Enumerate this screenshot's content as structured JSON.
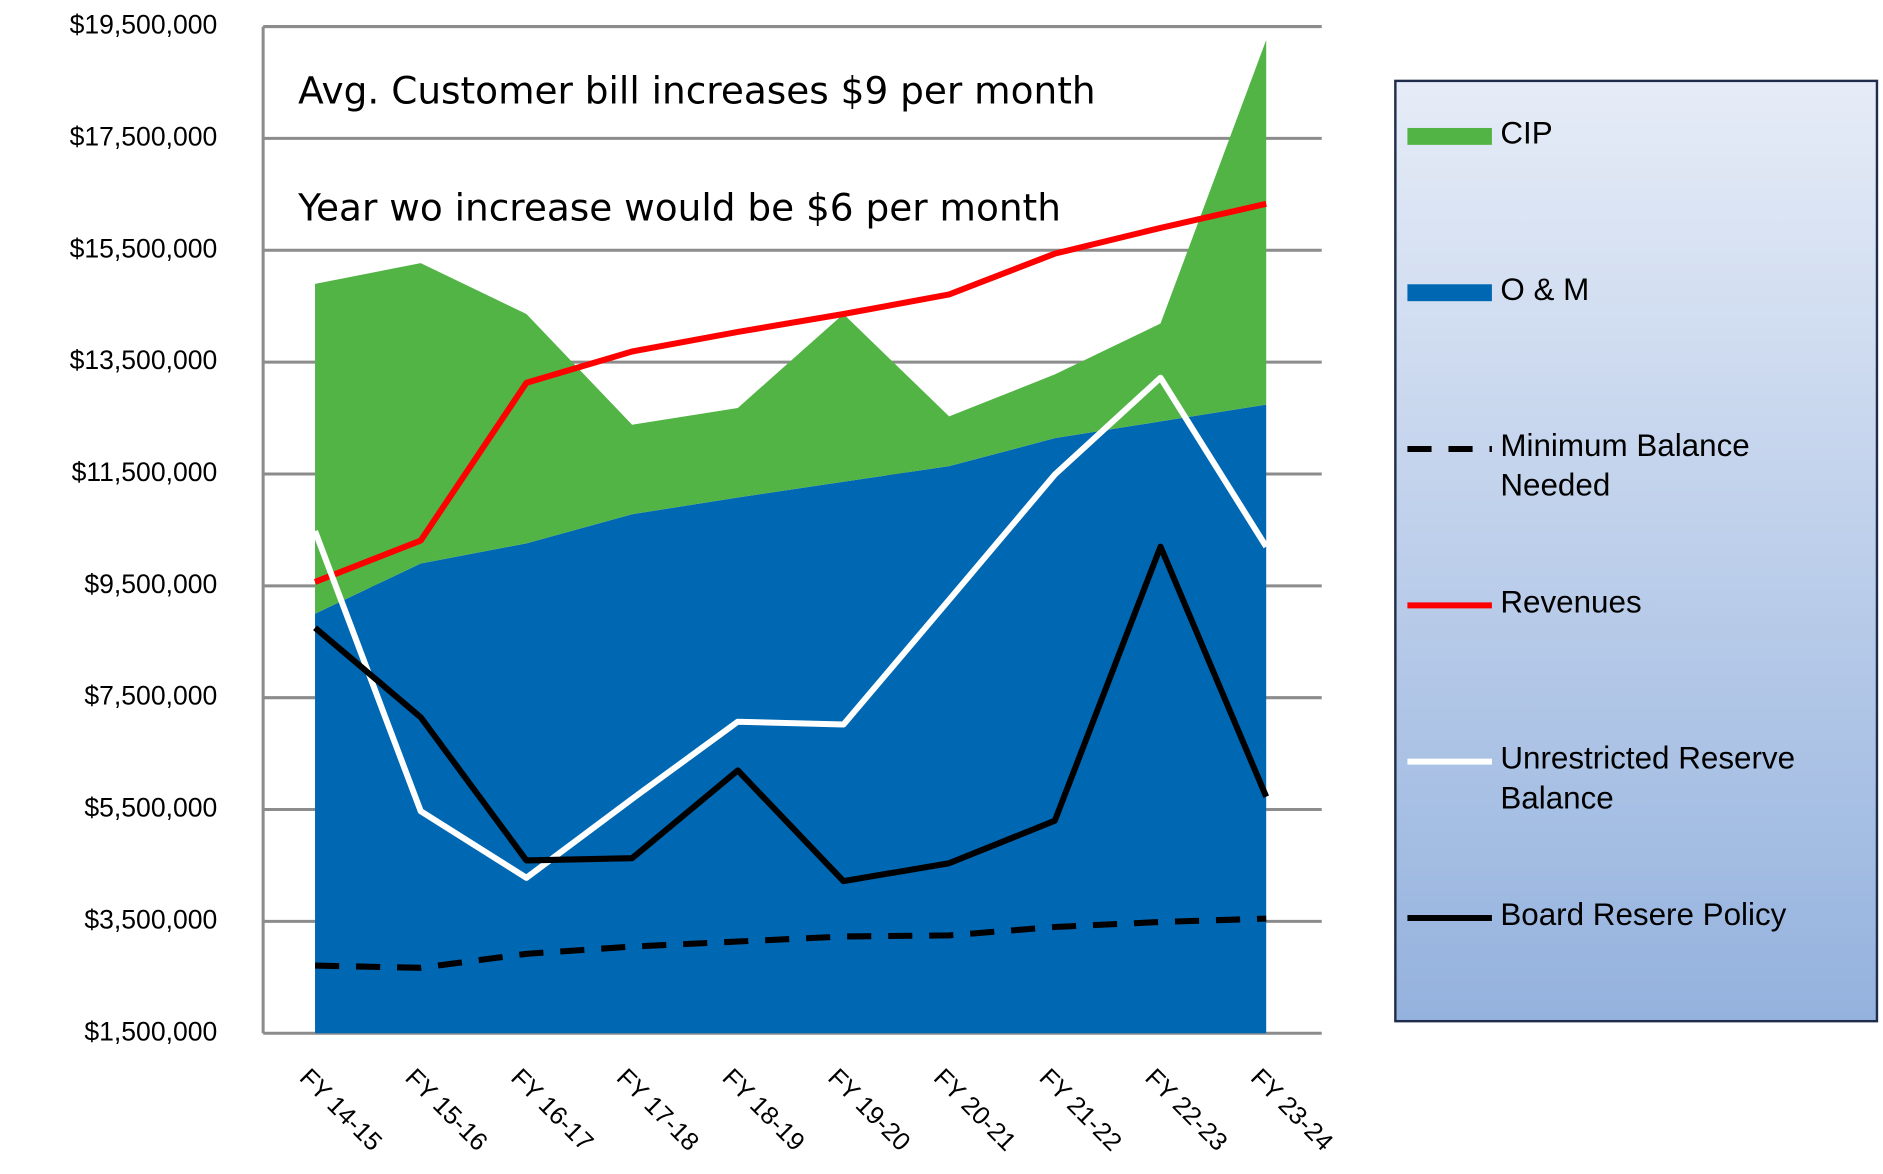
{
  "chart_data": {
    "type": "combo",
    "annotations": [
      "Avg. Customer bill increases $9 per month",
      "Year wo increase would be $6 per month"
    ],
    "categories": [
      "FY 14-15",
      "FY 15-16",
      "FY 16-17",
      "FY 17-18",
      "FY 18-19",
      "FY 19-20",
      "FY 20-21",
      "FY 21-22",
      "FY 22-23",
      "FY 23-24"
    ],
    "series": [
      {
        "name": "CIP",
        "kind": "area",
        "stack": true,
        "color": "#53b446",
        "values": [
          5900000,
          5370000,
          4100000,
          1600000,
          1600000,
          3000000,
          890000,
          1140000,
          1750000,
          6520000
        ]
      },
      {
        "name": "O & M",
        "kind": "area",
        "stack": true,
        "color": "#0067b2",
        "values": [
          9000000,
          9900000,
          10260000,
          10780000,
          11080000,
          11360000,
          11640000,
          12140000,
          12440000,
          12740000
        ]
      },
      {
        "name": "Minimum Balance Needed",
        "kind": "line",
        "dashed": true,
        "color": "#000000",
        "values": [
          2710000,
          2670000,
          2920000,
          3050000,
          3140000,
          3230000,
          3250000,
          3400000,
          3490000,
          3550000
        ]
      },
      {
        "name": "Revenues",
        "kind": "line",
        "color": "#ff0000",
        "values": [
          9570000,
          10310000,
          13130000,
          13690000,
          14040000,
          14360000,
          14710000,
          15440000,
          15900000,
          16330000
        ]
      },
      {
        "name": "Unrestricted Reserve Balance",
        "kind": "line",
        "color": "#ffffff",
        "values": [
          10480000,
          5470000,
          4280000,
          5690000,
          7070000,
          7020000,
          9250000,
          11490000,
          13220000,
          10200000
        ]
      },
      {
        "name": "Board Resere Policy",
        "kind": "line",
        "color": "#000000",
        "values": [
          8750000,
          7150000,
          4590000,
          4630000,
          6200000,
          4220000,
          4540000,
          5300000,
          10200000,
          5730000
        ]
      }
    ],
    "ylim": [
      1500000,
      19500000
    ],
    "yticks": [
      {
        "value": 1500000,
        "label": "$1,500,000"
      },
      {
        "value": 3500000,
        "label": "$3,500,000"
      },
      {
        "value": 5500000,
        "label": "$5,500,000"
      },
      {
        "value": 7500000,
        "label": "$7,500,000"
      },
      {
        "value": 9500000,
        "label": "$9,500,000"
      },
      {
        "value": 11500000,
        "label": "$11,500,000"
      },
      {
        "value": 13500000,
        "label": "$13,500,000"
      },
      {
        "value": 15500000,
        "label": "$15,500,000"
      },
      {
        "value": 17500000,
        "label": "$17,500,000"
      },
      {
        "value": 19500000,
        "label": "$19,500,000"
      }
    ],
    "grid": true,
    "legend": "right"
  }
}
